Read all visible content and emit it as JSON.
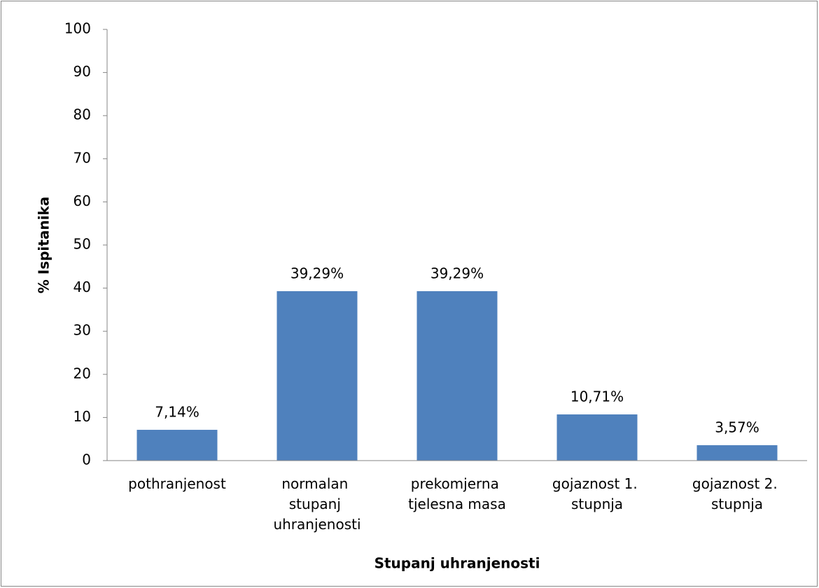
{
  "chart_data": {
    "type": "bar",
    "categories": [
      "pothranjenost",
      "normalan stupanj uhranjenosti",
      "prekomjerna tjelesna masa",
      "gojaznost 1. stupnja",
      "gojaznost 2. stupnja"
    ],
    "values": [
      7.14,
      39.29,
      39.29,
      10.71,
      3.57
    ],
    "value_labels": [
      "7,14%",
      "39,29%",
      "39,29%",
      "10,71%",
      "3,57%"
    ],
    "color": "#4f81bd",
    "x_label": "Stupanj uhranjenosti",
    "y_label": "% Ispitanika",
    "ylim": [
      0,
      100
    ],
    "yticks": [
      0,
      10,
      20,
      30,
      40,
      50,
      60,
      70,
      80,
      90,
      100
    ],
    "grid": false
  }
}
